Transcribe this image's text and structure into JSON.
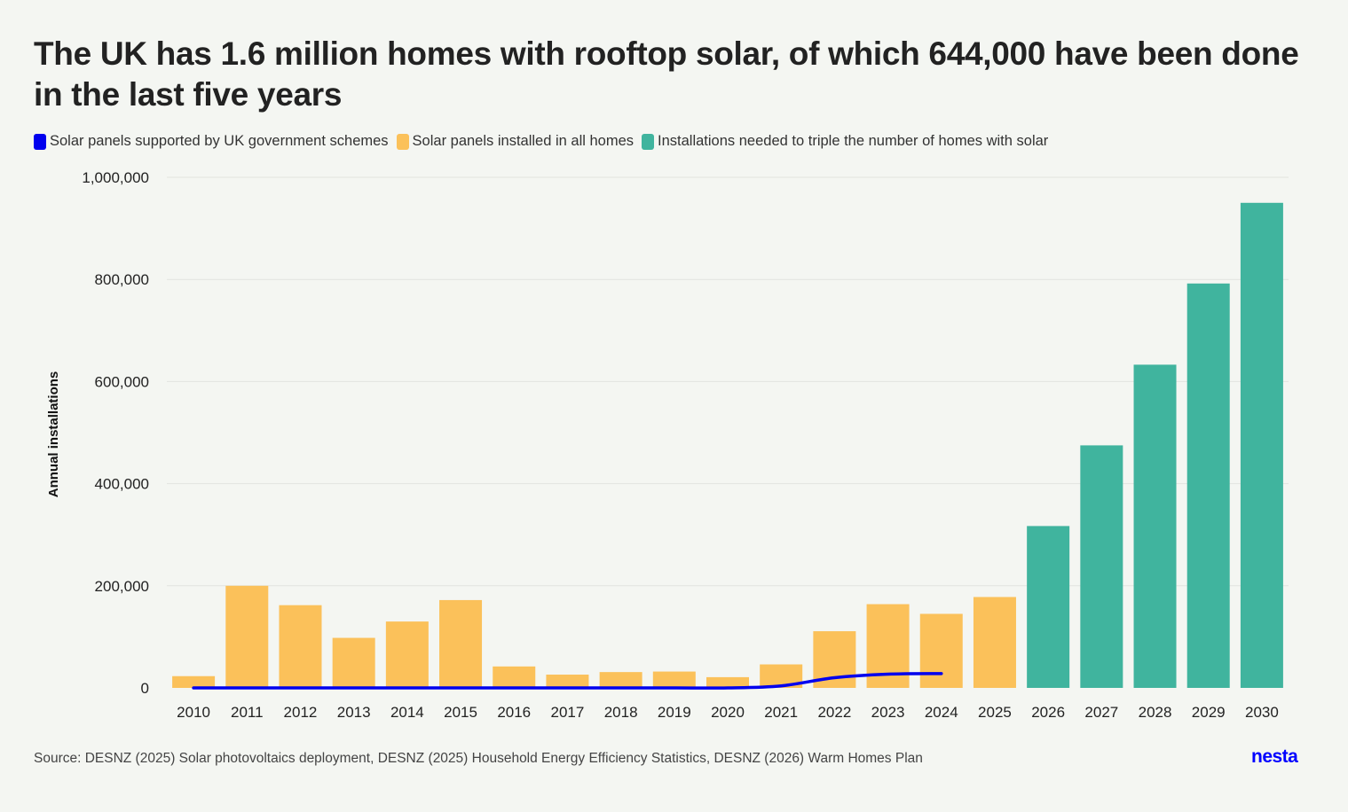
{
  "title": "The UK has 1.6 million homes with rooftop solar, of which 644,000 have been done in the last five years",
  "legend": [
    {
      "label": "Solar panels supported by UK government schemes",
      "color": "#0000ee"
    },
    {
      "label": "Solar panels installed in all homes",
      "color": "#fbc15a"
    },
    {
      "label": "Installations needed to triple the number of homes with solar",
      "color": "#40b49e"
    }
  ],
  "source": "Source: DESNZ (2025) Solar photovoltaics deployment, DESNZ (2025) Household Energy Efficiency Statistics, DESNZ (2026) Warm Homes Plan",
  "logo": "nesta",
  "chart_data": {
    "type": "bar",
    "ylabel": "Annual installations",
    "ylim": [
      0,
      1000000
    ],
    "yticks": [
      0,
      200000,
      400000,
      600000,
      800000,
      1000000
    ],
    "ytick_labels": [
      "0",
      "200,000",
      "400,000",
      "600,000",
      "800,000",
      "1,000,000"
    ],
    "grid": true,
    "categories": [
      "2010",
      "2011",
      "2012",
      "2013",
      "2014",
      "2015",
      "2016",
      "2017",
      "2018",
      "2019",
      "2020",
      "2021",
      "2022",
      "2023",
      "2024",
      "2025",
      "2026",
      "2027",
      "2028",
      "2029",
      "2030"
    ],
    "series": [
      {
        "name": "Solar panels installed in all homes",
        "type": "bar",
        "color": "#fbc15a",
        "values": [
          23000,
          200000,
          162000,
          98000,
          130000,
          172000,
          42000,
          26000,
          31000,
          32000,
          21000,
          46000,
          111000,
          164000,
          145000,
          178000,
          null,
          null,
          null,
          null,
          null
        ]
      },
      {
        "name": "Installations needed to triple the number of homes with solar",
        "type": "bar",
        "color": "#40b49e",
        "values": [
          null,
          null,
          null,
          null,
          null,
          null,
          null,
          null,
          null,
          null,
          null,
          null,
          null,
          null,
          null,
          null,
          317000,
          475000,
          633000,
          792000,
          950000
        ]
      },
      {
        "name": "Solar panels supported by UK government schemes",
        "type": "line",
        "color": "#0000ee",
        "values": [
          0,
          0,
          0,
          0,
          0,
          0,
          0,
          0,
          0,
          0,
          0,
          4000,
          20000,
          27000,
          28000,
          null,
          null,
          null,
          null,
          null,
          null
        ]
      }
    ]
  }
}
